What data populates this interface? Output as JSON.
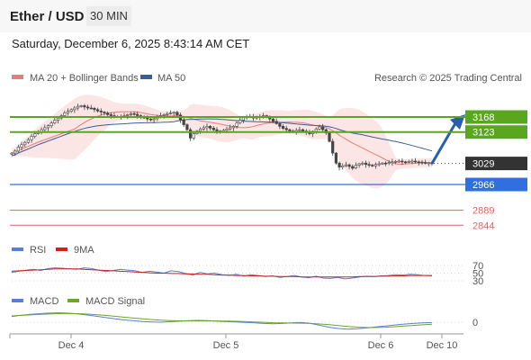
{
  "header": {
    "pair": "Ether / USD",
    "timeframe": "30 MIN",
    "datetime": "Saturday, December 6, 2025 8:43:14 AM CET"
  },
  "legend": {
    "ma20_label": "MA 20 + Bollinger Bands",
    "ma50_label": "MA 50",
    "credit": "Research © 2025 Trading Central",
    "rsi_label": "RSI",
    "rsi_ma_label": "9MA",
    "macd_label": "MACD",
    "macd_signal_label": "MACD Signal"
  },
  "colors": {
    "green_level": "#5aa71f",
    "blue_level": "#2f6fe0",
    "red_level": "#e06464",
    "current": "#333333",
    "ma20": "#e87b7b",
    "ma50": "#3b5d9a",
    "bollinger_fill": "#fbdcdc",
    "arrow": "#2a5ea8",
    "rsi": "#5b7fd6",
    "rsi_ma": "#cc2222",
    "macd": "#5b7fd6",
    "macd_signal": "#6aa72a",
    "candle": "#444444"
  },
  "chart_data": [
    {
      "type": "candlestick",
      "title": "",
      "x_ticks": [
        "Dec 4",
        "Dec 5",
        "Dec 6",
        "Dec 10"
      ],
      "ylim": [
        2820,
        3220
      ],
      "price_levels": [
        {
          "label": "3168",
          "value": 3168,
          "kind": "resistance"
        },
        {
          "label": "3123",
          "value": 3123,
          "kind": "resistance"
        },
        {
          "label": "3029",
          "value": 3029,
          "kind": "current"
        },
        {
          "label": "2966",
          "value": 2966,
          "kind": "support"
        },
        {
          "label": "2889",
          "value": 2889,
          "kind": "support"
        },
        {
          "label": "2844",
          "value": 2844,
          "kind": "support"
        }
      ],
      "close": [
        3060,
        3066,
        3078,
        3085,
        3092,
        3100,
        3110,
        3118,
        3124,
        3130,
        3136,
        3142,
        3150,
        3158,
        3165,
        3172,
        3180,
        3185,
        3190,
        3195,
        3200,
        3202,
        3198,
        3195,
        3194,
        3190,
        3186,
        3183,
        3180,
        3175,
        3172,
        3170,
        3168,
        3170,
        3172,
        3175,
        3178,
        3176,
        3172,
        3168,
        3165,
        3162,
        3160,
        3163,
        3168,
        3172,
        3175,
        3178,
        3180,
        3182,
        3174,
        3160,
        3145,
        3130,
        3105,
        3118,
        3126,
        3132,
        3136,
        3140,
        3135,
        3130,
        3126,
        3124,
        3128,
        3132,
        3136,
        3140,
        3150,
        3158,
        3166,
        3170,
        3168,
        3165,
        3168,
        3170,
        3172,
        3168,
        3162,
        3155,
        3148,
        3140,
        3134,
        3130,
        3126,
        3124,
        3128,
        3130,
        3126,
        3122,
        3118,
        3125,
        3132,
        3138,
        3130,
        3120,
        3095,
        3060,
        3030,
        3018,
        3022,
        3025,
        3020,
        3015,
        3024,
        3028,
        3030,
        3026,
        3024,
        3022,
        3026,
        3028,
        3030,
        3029,
        3032,
        3034,
        3035,
        3036,
        3034,
        3033,
        3035,
        3036,
        3034,
        3033,
        3032,
        3030,
        3031,
        3029
      ],
      "series": [
        {
          "name": "MA 20 + Bollinger Bands"
        },
        {
          "name": "MA 50"
        }
      ]
    },
    {
      "type": "line",
      "title": "RSI",
      "y_ticks": [
        "70",
        "50",
        "30"
      ],
      "ylim": [
        20,
        80
      ],
      "series": [
        {
          "name": "RSI",
          "values": [
            52,
            55,
            58,
            60,
            57,
            62,
            64,
            63,
            61,
            60,
            64,
            62,
            58,
            54,
            57,
            60,
            58,
            56,
            52,
            55,
            53,
            50,
            56,
            54,
            49,
            45,
            52,
            48,
            50,
            46,
            44,
            47,
            42,
            46,
            44,
            41,
            43,
            39,
            41,
            44,
            40,
            38,
            42,
            37,
            36,
            39,
            35,
            37,
            40,
            42,
            41,
            43,
            44,
            46,
            45,
            47,
            46,
            44,
            43
          ]
        },
        {
          "name": "9MA",
          "values": [
            55,
            56,
            57,
            58,
            59,
            60,
            61,
            61,
            61,
            61,
            60,
            59,
            58,
            57,
            56,
            55,
            54,
            53,
            52,
            51,
            50,
            50,
            49,
            49,
            48,
            48,
            47,
            47,
            46,
            45,
            45,
            44,
            44,
            43,
            43,
            42,
            42,
            41,
            41,
            41,
            40,
            40,
            40,
            40,
            40,
            40,
            40,
            40,
            41,
            41,
            41,
            42,
            42,
            43,
            43,
            44,
            44,
            44,
            44
          ]
        }
      ]
    },
    {
      "type": "line",
      "title": "MACD",
      "y_ticks": [
        "0"
      ],
      "ylim": [
        -1,
        1
      ],
      "series": [
        {
          "name": "MACD",
          "values": [
            0.45,
            0.55,
            0.62,
            0.68,
            0.72,
            0.74,
            0.72,
            0.66,
            0.58,
            0.48,
            0.38,
            0.28,
            0.18,
            0.12,
            0.06,
            0.02,
            0.0,
            0.04,
            0.08,
            0.12,
            0.14,
            0.12,
            0.08,
            0.04,
            0.02,
            -0.02,
            -0.06,
            -0.1,
            -0.12,
            -0.1,
            -0.06,
            -0.02,
            -0.1,
            -0.25,
            -0.4,
            -0.5,
            -0.55,
            -0.52,
            -0.46,
            -0.38,
            -0.3,
            -0.22,
            -0.15,
            -0.1,
            -0.06,
            -0.03
          ]
        },
        {
          "name": "MACD Signal",
          "values": [
            0.5,
            0.54,
            0.58,
            0.62,
            0.65,
            0.68,
            0.69,
            0.68,
            0.65,
            0.6,
            0.54,
            0.47,
            0.4,
            0.33,
            0.27,
            0.21,
            0.16,
            0.13,
            0.11,
            0.1,
            0.1,
            0.1,
            0.1,
            0.09,
            0.07,
            0.05,
            0.02,
            -0.01,
            -0.04,
            -0.06,
            -0.07,
            -0.08,
            -0.1,
            -0.14,
            -0.2,
            -0.27,
            -0.34,
            -0.39,
            -0.42,
            -0.42,
            -0.4,
            -0.36,
            -0.31,
            -0.26,
            -0.21,
            -0.16
          ]
        }
      ]
    }
  ]
}
